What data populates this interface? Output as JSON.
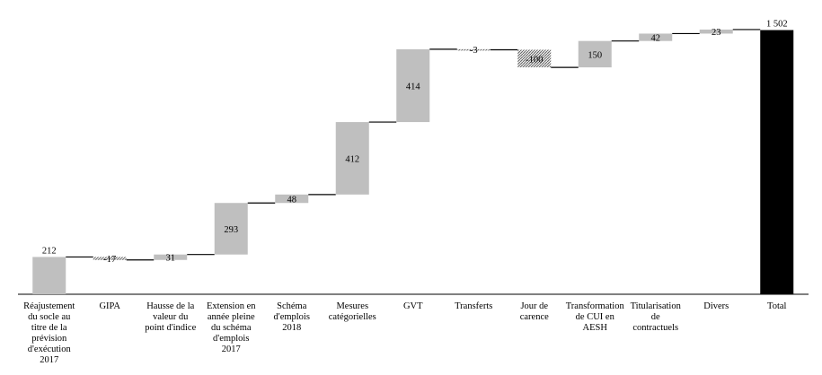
{
  "chart_data": {
    "type": "waterfall",
    "categories": [
      "Réajustement\ndu socle au\ntitre de la\nprévision\nd'exécution\n2017",
      "GIPA",
      "Hausse de la\nvaleur du\npoint d'indice",
      "Extension en\nannée pleine\ndu schéma\nd'emplois\n2017",
      "Schéma\nd'emplois\n2018",
      "Mesures\ncatégorielles",
      "GVT",
      "Transferts",
      "Jour de\ncarence",
      "Transformation\nde CUI en\nAESH",
      "Titularisation\nde\ncontractuels",
      "Divers",
      "Total"
    ],
    "values": [
      212,
      -17,
      31,
      293,
      48,
      412,
      414,
      -3,
      -100,
      150,
      42,
      23,
      1502
    ],
    "value_labels": [
      "212",
      "-17",
      "31",
      "293",
      "48",
      "412",
      "414",
      "-3",
      "-100",
      "150",
      "42",
      "23",
      "1 502"
    ],
    "measure": [
      "relative",
      "relative",
      "relative",
      "relative",
      "relative",
      "relative",
      "relative",
      "relative",
      "relative",
      "relative",
      "relative",
      "relative",
      "total"
    ],
    "color": "#bfbfbf",
    "negative_color": "#808080",
    "total_color": "#000000",
    "ylim": [
      0,
      1520
    ]
  }
}
